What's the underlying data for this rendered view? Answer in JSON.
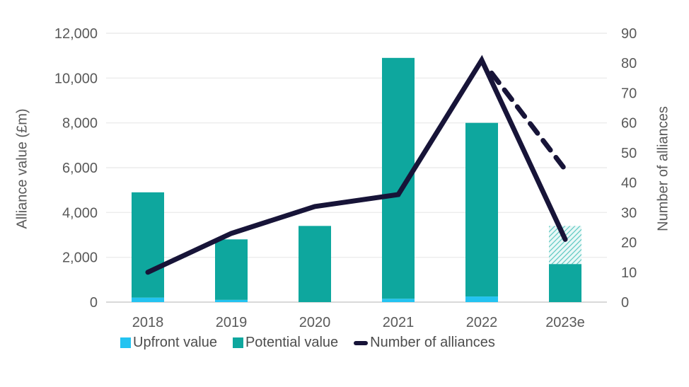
{
  "chart_data": {
    "type": "bar+line combo, dual axis, stacked bars",
    "categories": [
      "2018",
      "2019",
      "2020",
      "2021",
      "2022",
      "2023e"
    ],
    "bar_series": [
      {
        "name": "Upfront value",
        "color": "#23C3F1",
        "values": [
          200,
          100,
          0,
          150,
          250,
          0
        ]
      },
      {
        "name": "Potential value",
        "color": "#0EA79E",
        "values": [
          4700,
          2700,
          3400,
          10750,
          7750,
          1700
        ]
      },
      {
        "name": "Potential value (2023 estimate, hatched)",
        "color": "hatch-pattern",
        "values": [
          0,
          0,
          0,
          0,
          0,
          1700
        ]
      }
    ],
    "bar_totals": [
      4900,
      2800,
      3400,
      10900,
      8000,
      3400
    ],
    "line_series": {
      "name": "Number of alliances",
      "color": "#171438",
      "values": [
        10,
        23,
        32,
        36,
        81,
        21
      ],
      "dashed_projection": {
        "from_category": "2022",
        "from_value": 81,
        "to_category": "2023e",
        "to_value": 45
      }
    },
    "left_axis": {
      "title": "Alliance value (£m)",
      "min": 0,
      "max": 12000,
      "step": 2000,
      "tick_labels": [
        "0",
        "2,000",
        "4,000",
        "6,000",
        "8,000",
        "10,000",
        "12,000"
      ]
    },
    "right_axis": {
      "title": "Number of alliances",
      "min": 0,
      "max": 90,
      "step": 10,
      "tick_labels": [
        "0",
        "10",
        "20",
        "30",
        "40",
        "50",
        "60",
        "70",
        "80",
        "90"
      ]
    },
    "grid": "horizontal gridlines on, light gray",
    "legend_position": "bottom"
  },
  "legend": {
    "items": [
      {
        "label": "Upfront value",
        "swatch": "cyan-square"
      },
      {
        "label": "Potential value",
        "swatch": "teal-square"
      },
      {
        "label": "Number of alliances",
        "swatch": "navy-line"
      }
    ]
  },
  "colors": {
    "upfront": "#23C3F1",
    "potential": "#0EA79E",
    "line": "#171438",
    "hatch_base": "#E9F8F7",
    "hatch_stripe": "#52C4BD",
    "gridline": "#ECECEC",
    "axis_line": "#D9D9D9",
    "tick_text": "#595959"
  }
}
